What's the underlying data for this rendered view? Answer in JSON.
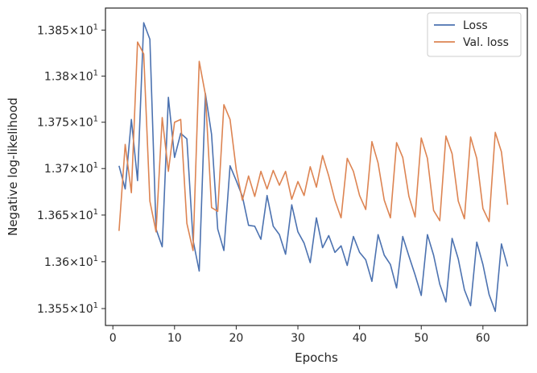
{
  "chart_data": {
    "type": "line",
    "xlabel": "Epochs",
    "ylabel": "Negative log-likelihood",
    "xlim": [
      -1.2,
      67.2
    ],
    "ylim": [
      13.532,
      13.874
    ],
    "y_scale": "log",
    "xticks": [
      0,
      10,
      20,
      30,
      40,
      50,
      60
    ],
    "yticks": [
      {
        "value": 13.55,
        "mantissa": "1.355",
        "exp": "1"
      },
      {
        "value": 13.6,
        "mantissa": "1.36",
        "exp": "1"
      },
      {
        "value": 13.65,
        "mantissa": "1.365",
        "exp": "1"
      },
      {
        "value": 13.7,
        "mantissa": "1.37",
        "exp": "1"
      },
      {
        "value": 13.75,
        "mantissa": "1.375",
        "exp": "1"
      },
      {
        "value": 13.8,
        "mantissa": "1.38",
        "exp": "1"
      },
      {
        "value": 13.85,
        "mantissa": "1.385",
        "exp": "1"
      }
    ],
    "tick_times": "×10",
    "grid": false,
    "legend_position": "top-right",
    "x": [
      1,
      2,
      3,
      4,
      5,
      6,
      7,
      8,
      9,
      10,
      11,
      12,
      13,
      14,
      15,
      16,
      17,
      18,
      19,
      20,
      21,
      22,
      23,
      24,
      25,
      26,
      27,
      28,
      29,
      30,
      31,
      32,
      33,
      34,
      35,
      36,
      37,
      38,
      39,
      40,
      41,
      42,
      43,
      44,
      45,
      46,
      47,
      48,
      49,
      50,
      51,
      52,
      53,
      54,
      55,
      56,
      57,
      58,
      59,
      60,
      61,
      62,
      63,
      64
    ],
    "series": [
      {
        "name": "Loss",
        "color": "#4c72b0",
        "values": [
          13.703,
          13.678,
          13.753,
          13.687,
          13.858,
          13.84,
          13.635,
          13.616,
          13.777,
          13.712,
          13.738,
          13.732,
          13.623,
          13.59,
          13.781,
          13.737,
          13.635,
          13.612,
          13.703,
          13.687,
          13.67,
          13.639,
          13.638,
          13.624,
          13.671,
          13.638,
          13.629,
          13.608,
          13.661,
          13.632,
          13.62,
          13.599,
          13.647,
          13.615,
          13.628,
          13.61,
          13.617,
          13.596,
          13.627,
          13.61,
          13.602,
          13.579,
          13.629,
          13.607,
          13.597,
          13.572,
          13.627,
          13.606,
          13.586,
          13.564,
          13.629,
          13.607,
          13.576,
          13.557,
          13.625,
          13.603,
          13.57,
          13.553,
          13.621,
          13.597,
          13.565,
          13.547,
          13.619,
          13.595
        ]
      },
      {
        "name": "Val. loss",
        "color": "#dd8452",
        "values": [
          13.633,
          13.726,
          13.674,
          13.837,
          13.824,
          13.665,
          13.632,
          13.755,
          13.697,
          13.75,
          13.753,
          13.641,
          13.612,
          13.816,
          13.78,
          13.658,
          13.654,
          13.769,
          13.753,
          13.699,
          13.666,
          13.692,
          13.67,
          13.697,
          13.678,
          13.698,
          13.682,
          13.697,
          13.667,
          13.686,
          13.671,
          13.702,
          13.68,
          13.714,
          13.692,
          13.666,
          13.647,
          13.711,
          13.697,
          13.671,
          13.656,
          13.729,
          13.706,
          13.666,
          13.647,
          13.728,
          13.712,
          13.67,
          13.648,
          13.733,
          13.711,
          13.655,
          13.644,
          13.735,
          13.716,
          13.665,
          13.646,
          13.734,
          13.711,
          13.657,
          13.643,
          13.739,
          13.718,
          13.661
        ]
      }
    ]
  }
}
